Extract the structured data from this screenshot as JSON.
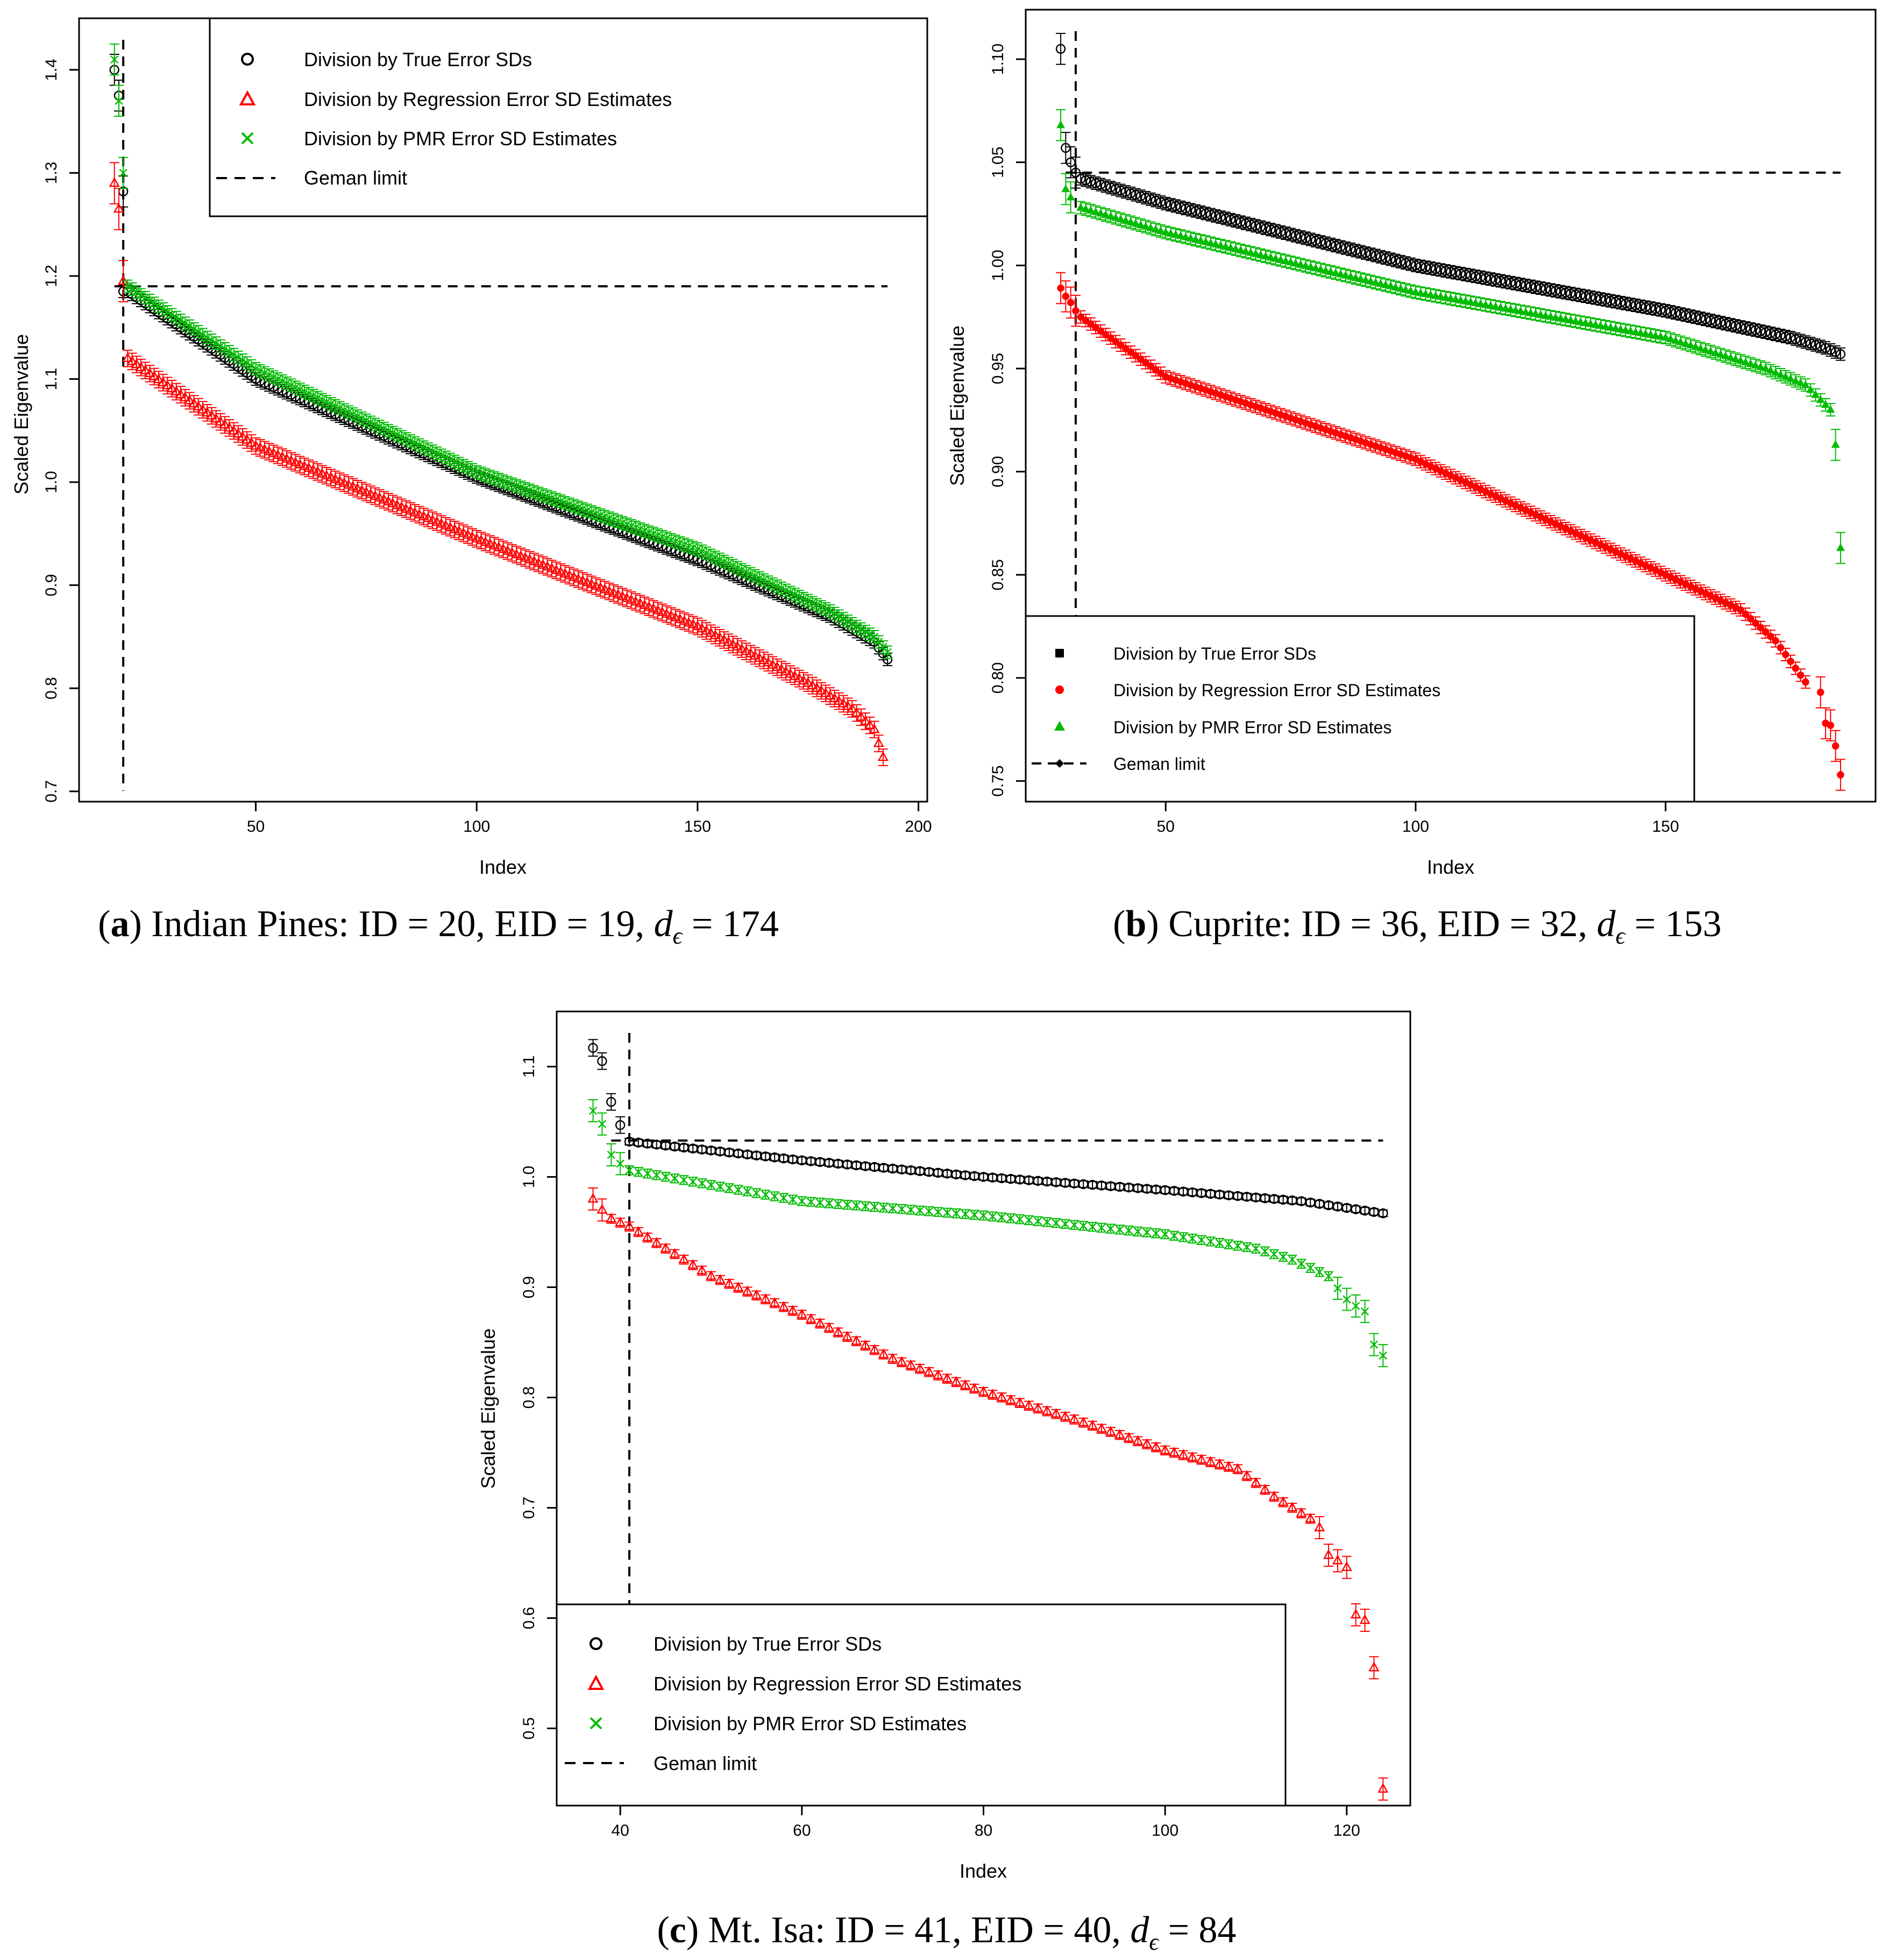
{
  "chart_data": [
    {
      "id": "a",
      "type": "scatter",
      "caption": {
        "letter": "a",
        "text": ") Indian Pines: ID = 20, EID = 19, ",
        "d_var": "d",
        "d_sub": "ϵ",
        "d_val": " = 174"
      },
      "xlabel": "Index",
      "ylabel": "Scaled Eigenvalue",
      "xlim": [
        10,
        202
      ],
      "ylim": [
        0.69,
        1.45
      ],
      "xticks": [
        50,
        100,
        150,
        200
      ],
      "yticks": [
        0.7,
        0.8,
        0.9,
        1.0,
        1.1,
        1.2,
        1.3,
        1.4
      ],
      "xtick_labels": [
        "50",
        "100",
        "150",
        "200"
      ],
      "ytick_labels": [
        "0.7",
        "0.8",
        "0.9",
        "1.0",
        "1.1",
        "1.2",
        "1.3",
        "1.4"
      ],
      "geman_limit": {
        "x": 20,
        "y": 1.19,
        "x_end": 193
      },
      "legend": {
        "position": "top-right",
        "entries": [
          {
            "label": "Division by True Error SDs",
            "marker": "circle",
            "color": "#000000"
          },
          {
            "label": "Division by Regression Error SD Estimates",
            "marker": "triangle",
            "color": "#ff0000"
          },
          {
            "label": "Division by PMR Error SD Estimates",
            "marker": "x",
            "color": "#00bb00"
          },
          {
            "label": "Geman limit",
            "marker": "dash",
            "color": "#000000"
          }
        ]
      },
      "series": [
        {
          "name": "Division by True Error SDs",
          "marker": "circle-open",
          "color": "#000000",
          "err": 0.006,
          "x_start": 20,
          "x_end": 193,
          "head": [
            [
              18,
              1.4
            ],
            [
              19,
              1.375
            ],
            [
              20,
              1.282
            ]
          ],
          "knots": [
            [
              21,
              1.185
            ],
            [
              50,
              1.1
            ],
            [
              100,
              1.005
            ],
            [
              150,
              0.925
            ],
            [
              180,
              0.87
            ],
            [
              190,
              0.845
            ],
            [
              193,
              0.828
            ]
          ]
        },
        {
          "name": "Division by Regression Error SD Estimates",
          "marker": "triangle-open",
          "color": "#ff0000",
          "err": 0.008,
          "x_start": 21,
          "x_end": 192,
          "head": [
            [
              18,
              1.29
            ],
            [
              19,
              1.265
            ],
            [
              20,
              1.195
            ]
          ],
          "knots": [
            [
              21,
              1.12
            ],
            [
              50,
              1.035
            ],
            [
              100,
              0.945
            ],
            [
              150,
              0.86
            ],
            [
              175,
              0.805
            ],
            [
              185,
              0.78
            ],
            [
              190,
              0.76
            ],
            [
              192,
              0.733
            ]
          ]
        },
        {
          "name": "Division by PMR Error SD Estimates",
          "marker": "x",
          "color": "#00bb00",
          "err": 0.006,
          "x_start": 21,
          "x_end": 193,
          "head": [
            [
              18,
              1.41
            ],
            [
              19,
              1.37
            ],
            [
              20,
              1.3
            ]
          ],
          "knots": [
            [
              21,
              1.19
            ],
            [
              50,
              1.11
            ],
            [
              100,
              1.01
            ],
            [
              150,
              0.935
            ],
            [
              180,
              0.875
            ],
            [
              190,
              0.85
            ],
            [
              193,
              0.835
            ]
          ]
        }
      ]
    },
    {
      "id": "b",
      "type": "scatter",
      "caption": {
        "letter": "b",
        "text": ") Cuprite: ID = 36, EID = 32, ",
        "d_var": "d",
        "d_sub": "ϵ",
        "d_val": " = 153"
      },
      "xlabel": "Index",
      "ylabel": "Scaled Eigenvalue",
      "xlim": [
        22,
        192
      ],
      "ylim": [
        0.74,
        1.124
      ],
      "xticks": [
        50,
        100,
        150
      ],
      "yticks": [
        0.75,
        0.8,
        0.85,
        0.9,
        0.95,
        1.0,
        1.05,
        1.1
      ],
      "xtick_labels": [
        "50",
        "100",
        "150"
      ],
      "ytick_labels": [
        "0.75",
        "0.80",
        "0.85",
        "0.90",
        "0.95",
        "1.00",
        "1.05",
        "1.10"
      ],
      "geman_limit": {
        "x": 32,
        "y": 1.045,
        "x_end": 185
      },
      "legend": {
        "position": "bottom-left",
        "entries": [
          {
            "label": "Division by True Error SDs",
            "marker": "square",
            "color": "#000000"
          },
          {
            "label": "Division by Regression Error SD Estimates",
            "marker": "dot",
            "color": "#ff0000"
          },
          {
            "label": "Division by PMR Error SD Estimates",
            "marker": "triangle-filled",
            "color": "#00bb00"
          },
          {
            "label": "Geman limit",
            "marker": "dash-diamond",
            "color": "#000000"
          }
        ]
      },
      "series": [
        {
          "name": "Division by True Error SDs",
          "marker": "circle-open",
          "color": "#000000",
          "err": 0.003,
          "x_start": 33,
          "x_end": 185,
          "head": [
            [
              29,
              1.105
            ],
            [
              30,
              1.057
            ],
            [
              31,
              1.05
            ],
            [
              32,
              1.045
            ]
          ],
          "knots": [
            [
              33,
              1.042
            ],
            [
              50,
              1.03
            ],
            [
              100,
              1.0
            ],
            [
              150,
              0.978
            ],
            [
              175,
              0.965
            ],
            [
              182,
              0.96
            ],
            [
              185,
              0.957
            ]
          ]
        },
        {
          "name": "Division by Regression Error SD Estimates",
          "marker": "dot",
          "color": "#ff0000",
          "err": 0.003,
          "x_start": 33,
          "x_end": 178,
          "head": [
            [
              29,
              0.989
            ],
            [
              30,
              0.985
            ],
            [
              31,
              0.982
            ],
            [
              32,
              0.978
            ]
          ],
          "knots": [
            [
              33,
              0.975
            ],
            [
              50,
              0.946
            ],
            [
              100,
              0.906
            ],
            [
              150,
              0.85
            ],
            [
              165,
              0.833
            ],
            [
              172,
              0.818
            ],
            [
              178,
              0.798
            ]
          ],
          "tail": [
            [
              181,
              0.793
            ],
            [
              182,
              0.778
            ],
            [
              183,
              0.777
            ],
            [
              184,
              0.767
            ],
            [
              185,
              0.753
            ]
          ]
        },
        {
          "name": "Division by PMR Error SD Estimates",
          "marker": "triangle-filled",
          "color": "#00bb00",
          "err": 0.003,
          "x_start": 33,
          "x_end": 183,
          "head": [
            [
              29,
              1.068
            ],
            [
              30,
              1.037
            ],
            [
              31,
              1.033
            ]
          ],
          "knots": [
            [
              33,
              1.028
            ],
            [
              50,
              1.016
            ],
            [
              100,
              0.987
            ],
            [
              150,
              0.965
            ],
            [
              170,
              0.95
            ],
            [
              178,
              0.942
            ],
            [
              183,
              0.93
            ]
          ],
          "tail": [
            [
              184,
              0.913
            ],
            [
              185,
              0.863
            ]
          ]
        }
      ]
    },
    {
      "id": "c",
      "type": "scatter",
      "caption": {
        "letter": "c",
        "text": ") Mt. Isa: ID = 41, EID = 40, ",
        "d_var": "d",
        "d_sub": "ϵ",
        "d_val": " = 84"
      },
      "xlabel": "Index",
      "ylabel": "Scaled Eigenvalue",
      "xlim": [
        33,
        127
      ],
      "ylim": [
        0.43,
        1.15
      ],
      "xticks": [
        40,
        60,
        80,
        100,
        120
      ],
      "yticks": [
        0.5,
        0.6,
        0.7,
        0.8,
        0.9,
        1.0,
        1.1
      ],
      "xtick_labels": [
        "40",
        "60",
        "80",
        "100",
        "120"
      ],
      "ytick_labels": [
        "0.5",
        "0.6",
        "0.7",
        "0.8",
        "0.9",
        "1.0",
        "1.1"
      ],
      "geman_limit": {
        "x": 41,
        "y": 1.033,
        "x_end": 124
      },
      "legend": {
        "position": "bottom-left",
        "entries": [
          {
            "label": "Division by True Error SDs",
            "marker": "circle",
            "color": "#000000"
          },
          {
            "label": "Division by Regression Error SD Estimates",
            "marker": "triangle",
            "color": "#ff0000"
          },
          {
            "label": "Division by PMR Error SD Estimates",
            "marker": "x",
            "color": "#00bb00"
          },
          {
            "label": "Geman limit",
            "marker": "dash",
            "color": "#000000"
          }
        ]
      },
      "series": [
        {
          "name": "Division by True Error SDs",
          "marker": "circle-open",
          "color": "#000000",
          "err": 0.003,
          "x_start": 41,
          "x_end": 124,
          "head": [
            [
              37,
              1.117
            ],
            [
              38,
              1.105
            ],
            [
              39,
              1.068
            ],
            [
              40,
              1.047
            ]
          ],
          "knots": [
            [
              41,
              1.032
            ],
            [
              60,
              1.015
            ],
            [
              80,
              1.0
            ],
            [
              100,
              0.988
            ],
            [
              115,
              0.978
            ],
            [
              124,
              0.967
            ]
          ]
        },
        {
          "name": "Division by Regression Error SD Estimates",
          "marker": "triangle-open",
          "color": "#ff0000",
          "err": 0.004,
          "x_start": 39,
          "x_end": 116,
          "head": [
            [
              37,
              0.98
            ],
            [
              38,
              0.97
            ]
          ],
          "knots": [
            [
              39,
              0.962
            ],
            [
              41,
              0.955
            ],
            [
              50,
              0.91
            ],
            [
              60,
              0.875
            ],
            [
              70,
              0.835
            ],
            [
              80,
              0.805
            ],
            [
              90,
              0.78
            ],
            [
              100,
              0.752
            ],
            [
              108,
              0.735
            ],
            [
              112,
              0.71
            ],
            [
              116,
              0.69
            ]
          ],
          "tail": [
            [
              117,
              0.682
            ],
            [
              118,
              0.657
            ],
            [
              119,
              0.652
            ],
            [
              120,
              0.646
            ],
            [
              121,
              0.603
            ],
            [
              122,
              0.598
            ],
            [
              123,
              0.555
            ],
            [
              124,
              0.445
            ]
          ]
        },
        {
          "name": "Division by PMR Error SD Estimates",
          "marker": "x",
          "color": "#00bb00",
          "err": 0.004,
          "x_start": 41,
          "x_end": 118,
          "head": [
            [
              37,
              1.06
            ],
            [
              38,
              1.048
            ],
            [
              39,
              1.02
            ],
            [
              40,
              1.012
            ]
          ],
          "knots": [
            [
              41,
              1.006
            ],
            [
              60,
              0.978
            ],
            [
              80,
              0.965
            ],
            [
              100,
              0.948
            ],
            [
              110,
              0.935
            ],
            [
              114,
              0.925
            ],
            [
              118,
              0.91
            ]
          ],
          "tail": [
            [
              119,
              0.899
            ],
            [
              120,
              0.889
            ],
            [
              121,
              0.883
            ],
            [
              122,
              0.878
            ],
            [
              123,
              0.848
            ],
            [
              124,
              0.838
            ]
          ]
        }
      ]
    }
  ]
}
